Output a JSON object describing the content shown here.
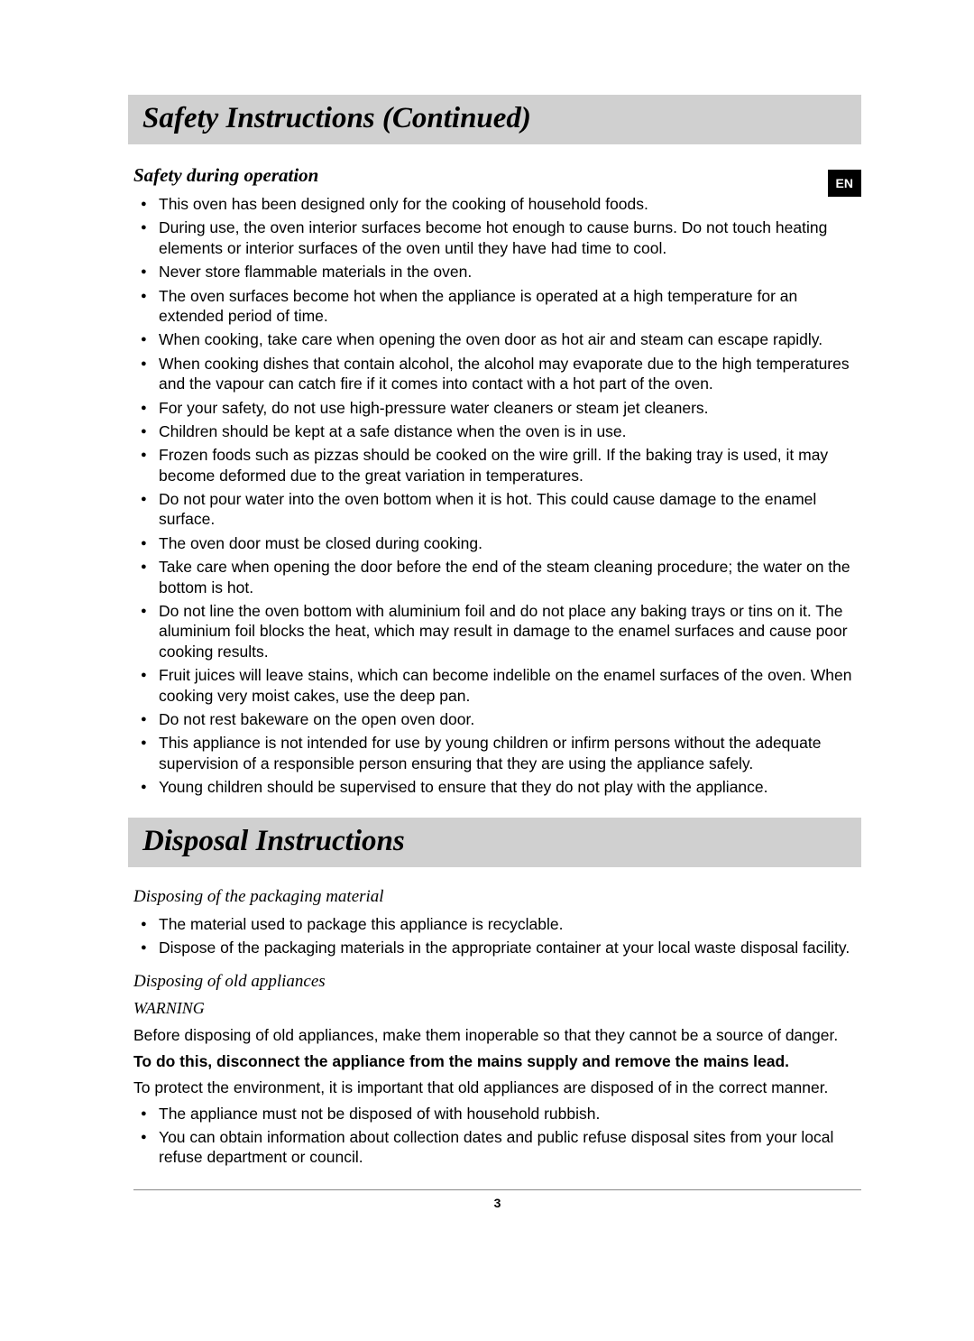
{
  "lang_tab": "EN",
  "page_number": "3",
  "section1": {
    "title": "Safety Instructions (Continued)",
    "subsection": {
      "title": "Safety during operation",
      "items": [
        "This oven has been designed only for the cooking of household foods.",
        "During use, the oven interior surfaces become hot enough to cause burns. Do not touch heating elements or interior surfaces of the oven until they have had time to cool.",
        "Never store flammable materials in the oven.",
        "The oven surfaces become hot when the appliance is operated at a high temperature for an extended period of time.",
        "When cooking, take care when opening the oven door as hot air and steam can escape rapidly.",
        "When cooking dishes that contain alcohol, the alcohol may evaporate due to the high temperatures and the vapour can catch fire if it comes into contact with a hot part of the oven.",
        "For your safety, do not use high-pressure water cleaners or steam jet cleaners.",
        "Children should be kept at a safe distance when the oven is in use.",
        "Frozen foods such as pizzas should be cooked on the wire grill. If the baking tray is used, it may become deformed due to the great variation in temperatures.",
        "Do not pour water into the oven bottom when it is hot. This could cause damage to the enamel surface.",
        "The oven door must be closed during cooking.",
        "Take care when opening the door before the end of the steam cleaning procedure; the water on the bottom is hot.",
        "Do not line the oven bottom with aluminium foil and do not place any baking trays or tins on it. The aluminium foil blocks the heat, which may result in damage to the enamel surfaces and cause poor cooking results.",
        "Fruit juices will leave stains, which can become indelible on the enamel surfaces of the oven. When cooking very moist cakes, use the deep pan.",
        "Do not rest bakeware on the open oven door.",
        "This appliance is not intended for use by young children or infirm persons without the adequate supervision of a responsible person ensuring that they are using the appliance safely.",
        "Young children should be supervised to ensure that they do not play with the appliance."
      ]
    }
  },
  "section2": {
    "title": "Disposal Instructions",
    "sub1": {
      "title": "Disposing of the packaging material",
      "items": [
        "The material used to package this appliance is recyclable.",
        "Dispose of the packaging materials in the appropriate container at your local waste disposal facility."
      ]
    },
    "sub2": {
      "title": "Disposing of old appliances",
      "warning_label": "WARNING",
      "para1": "Before disposing of old appliances, make them inoperable so that they cannot be a source of danger.",
      "para2": "To do this, disconnect the appliance from the mains supply and remove the mains lead.",
      "para3": "To protect the environment, it is important that old appliances are disposed of in the correct manner.",
      "items": [
        "The appliance must not be disposed of with household rubbish.",
        "You can obtain information about collection dates and public refuse disposal sites from your local refuse department or council."
      ]
    }
  }
}
